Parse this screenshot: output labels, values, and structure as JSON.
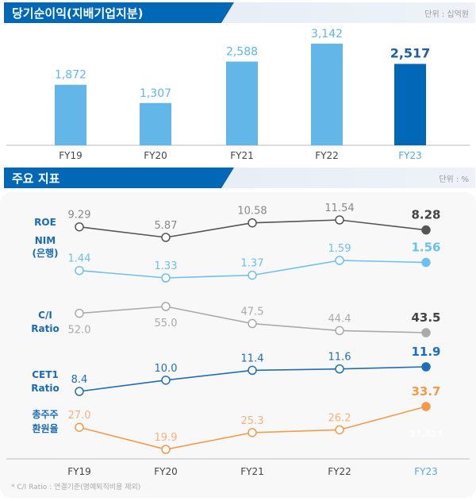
{
  "section1": {
    "title": "당기순이익(지배기업지분)",
    "unit": "단위 : 십억원"
  },
  "section2": {
    "title": "주요 지표",
    "unit": "단위 : %"
  },
  "footnote": "* C/I Ratio : 연결기준(명예퇴직비용 제외)",
  "hidden_text": "37,327",
  "chart_data": [
    {
      "type": "bar",
      "title": "당기순이익(지배기업지분)",
      "categories": [
        "FY19",
        "FY20",
        "FY21",
        "FY22",
        "FY23"
      ],
      "values": [
        1872,
        1307,
        2588,
        3142,
        2517
      ],
      "value_labels": [
        "1,872",
        "1,307",
        "2,588",
        "3,142",
        "2,517"
      ],
      "colors": {
        "bar": "#62b6e8",
        "highlight": "#0068b7",
        "highlight_label": "#5aa8e0"
      },
      "ylim": [
        0,
        3142
      ],
      "grid": false
    },
    {
      "type": "line",
      "title": "주요 지표",
      "categories": [
        "FY19",
        "FY20",
        "FY21",
        "FY22",
        "FY23"
      ],
      "grid": false,
      "series": [
        {
          "name": "ROE",
          "values": [
            9.29,
            5.87,
            10.58,
            11.54,
            8.28
          ],
          "labels": [
            "9.29",
            "5.87",
            "10.58",
            "11.54",
            "8.28"
          ],
          "color": "#555555",
          "label_color": "#888888"
        },
        {
          "name": "NIM (은행)",
          "name_lines": [
            "NIM",
            "(은행)"
          ],
          "values": [
            1.44,
            1.33,
            1.37,
            1.59,
            1.56
          ],
          "labels": [
            "1.44",
            "1.33",
            "1.37",
            "1.59",
            "1.56"
          ],
          "color": "#6cc0ef",
          "label_color": "#6cc0ef"
        },
        {
          "name": "C/I Ratio",
          "name_lines": [
            "C/I",
            "Ratio"
          ],
          "values": [
            52.0,
            55.0,
            47.5,
            44.4,
            43.5
          ],
          "labels": [
            "52.0",
            "55.0",
            "47.5",
            "44.4",
            "43.5"
          ],
          "color": "#aaaaaa",
          "label_color": "#aaaaaa"
        },
        {
          "name": "CET1 Ratio",
          "name_lines": [
            "CET1",
            "Ratio"
          ],
          "values": [
            8.4,
            10.0,
            11.4,
            11.6,
            11.9
          ],
          "labels": [
            "8.4",
            "10.0",
            "11.4",
            "11.6",
            "11.9"
          ],
          "color": "#1f6eb8",
          "label_color": "#1f6eb8"
        },
        {
          "name": "총주주 환원율",
          "name_lines": [
            "총주주",
            "환원율"
          ],
          "values": [
            27.0,
            19.9,
            25.3,
            26.2,
            33.7
          ],
          "labels": [
            "27.0",
            "19.9",
            "25.3",
            "26.2",
            "33.7"
          ],
          "color": "#f59a4a",
          "label_color": "#f7b27a"
        }
      ]
    }
  ]
}
